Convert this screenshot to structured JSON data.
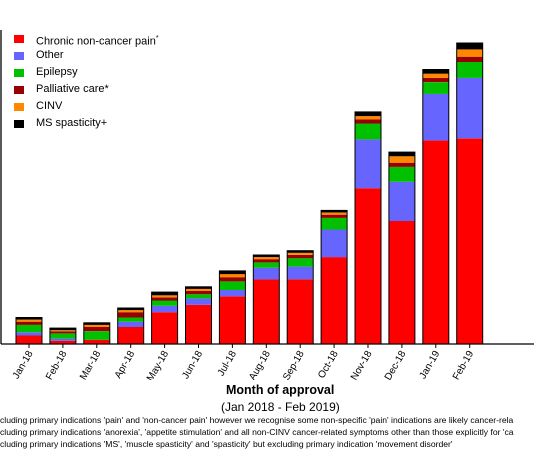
{
  "chart_data": {
    "type": "bar",
    "stacked": true,
    "xlabel": "Month of approval",
    "xsubtitle": "(Jan 2018 - Feb 2019)",
    "categories": [
      "Jan-18",
      "Feb-18",
      "Mar-18",
      "Apr-18",
      "May-18",
      "Jun-18",
      "Jul-18",
      "Aug-18",
      "Sep-18",
      "Oct-18",
      "Nov-18",
      "Dec-18",
      "Jan-19",
      "Feb-19"
    ],
    "ylim": [
      0,
      290
    ],
    "legend_position": "top-left",
    "series": [
      {
        "name": "Chronic non-cancer pain",
        "superscript": "*",
        "color": "#ff0000",
        "values": [
          8,
          3,
          4,
          16,
          30,
          37,
          45,
          61,
          61,
          82,
          147,
          116,
          192,
          194
        ]
      },
      {
        "name": "Other",
        "color": "#6666ff",
        "values": [
          3,
          2,
          0,
          5,
          6,
          6,
          6,
          11,
          12,
          26,
          46,
          37,
          44,
          57
        ]
      },
      {
        "name": "Epilepsy",
        "color": "#00c000",
        "values": [
          7,
          5,
          8,
          4,
          5,
          4,
          8,
          5,
          8,
          11,
          15,
          14,
          11,
          15
        ]
      },
      {
        "name": "Palliative care",
        "superscript": "*",
        "color": "#990000",
        "values": [
          3,
          2,
          4,
          5,
          3,
          3,
          4,
          3,
          3,
          3,
          4,
          4,
          4,
          5
        ]
      },
      {
        "name": "CINV",
        "color": "#ff8800",
        "values": [
          2,
          1,
          2,
          2,
          2,
          2,
          3,
          2,
          2,
          2,
          3,
          6,
          4,
          7
        ]
      },
      {
        "name": "MS spasticity",
        "superscript": "+",
        "color": "#000000",
        "values": [
          2,
          2,
          2,
          2,
          3,
          2,
          3,
          2,
          2,
          2,
          4,
          4,
          4,
          6
        ]
      }
    ]
  },
  "footnotes": [
    "cluding primary indications 'pain' and 'non-cancer pain' however we recognise some non-specific 'pain' indications are likely cancer-rela",
    "cluding primary indications 'anorexia', 'appetite stimulation' and all non-CINV cancer-related symptoms other than those explicitly for 'ca",
    "cluding primary indications 'MS', 'muscle spasticity' and 'spasticity' but excluding primary indication 'movement disorder'"
  ]
}
